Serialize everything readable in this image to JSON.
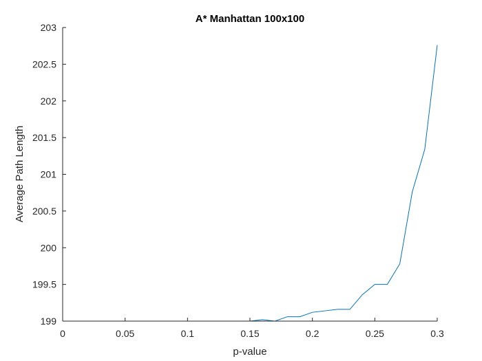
{
  "chart_data": {
    "type": "line",
    "title": "A* Manhattan 100x100",
    "xlabel": "p-value",
    "ylabel": "Average Path Length",
    "xlim": [
      0,
      0.3
    ],
    "ylim": [
      199,
      203
    ],
    "xticks": [
      0,
      0.05,
      0.1,
      0.15,
      0.2,
      0.25,
      0.3
    ],
    "xtick_labels": [
      "0",
      "0.05",
      "0.1",
      "0.15",
      "0.2",
      "0.25",
      "0.3"
    ],
    "yticks": [
      199,
      199.5,
      200,
      200.5,
      201,
      201.5,
      202,
      202.5,
      203
    ],
    "ytick_labels": [
      "199",
      "199.5",
      "200",
      "200.5",
      "201",
      "201.5",
      "202",
      "202.5",
      "203"
    ],
    "grid": false,
    "line_color": "#0072BD",
    "series": [
      {
        "x": [
          0,
          0.01,
          0.02,
          0.03,
          0.04,
          0.05,
          0.06,
          0.07,
          0.08,
          0.09,
          0.1,
          0.11,
          0.12,
          0.13,
          0.14,
          0.15,
          0.16,
          0.17,
          0.18,
          0.19,
          0.2,
          0.21,
          0.22,
          0.23,
          0.24,
          0.25,
          0.26,
          0.27,
          0.28,
          0.29,
          0.3
        ],
        "values": [
          199,
          199,
          199,
          199,
          199,
          199,
          199,
          199,
          199,
          199,
          199,
          199,
          199,
          199,
          199,
          199,
          199.02,
          199,
          199.06,
          199.06,
          199.12,
          199.14,
          199.16,
          199.16,
          199.36,
          199.5,
          199.5,
          199.78,
          200.76,
          201.34,
          202.76
        ]
      }
    ]
  }
}
